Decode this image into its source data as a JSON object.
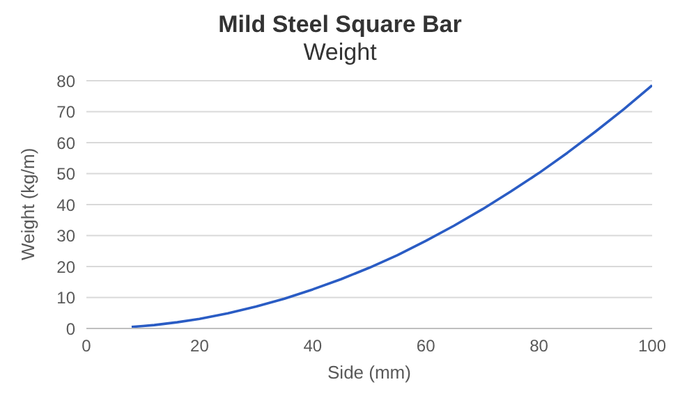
{
  "chart_data": {
    "type": "line",
    "title": "Mild Steel Square Bar",
    "subtitle": "Weight",
    "xlabel": "Side (mm)",
    "ylabel": "Weight (kg/m)",
    "x": [
      8,
      10,
      12,
      16,
      20,
      25,
      30,
      35,
      40,
      45,
      50,
      55,
      60,
      65,
      70,
      75,
      80,
      85,
      90,
      95,
      100
    ],
    "series": [
      {
        "color": "#2a5cc4",
        "values": [
          0.5,
          0.8,
          1.1,
          2.0,
          3.1,
          4.9,
          7.1,
          9.6,
          12.6,
          15.9,
          19.6,
          23.7,
          28.3,
          33.2,
          38.5,
          44.2,
          50.2,
          56.7,
          63.6,
          70.8,
          78.5
        ]
      }
    ],
    "xlim": [
      0,
      100
    ],
    "xticks": [
      0,
      20,
      40,
      60,
      80,
      100
    ],
    "ylim": [
      0,
      80
    ],
    "yticks": [
      0,
      10,
      20,
      30,
      40,
      50,
      60,
      70,
      80
    ],
    "grid": "y",
    "legend": false,
    "marker": "none",
    "line_style": "solid"
  }
}
